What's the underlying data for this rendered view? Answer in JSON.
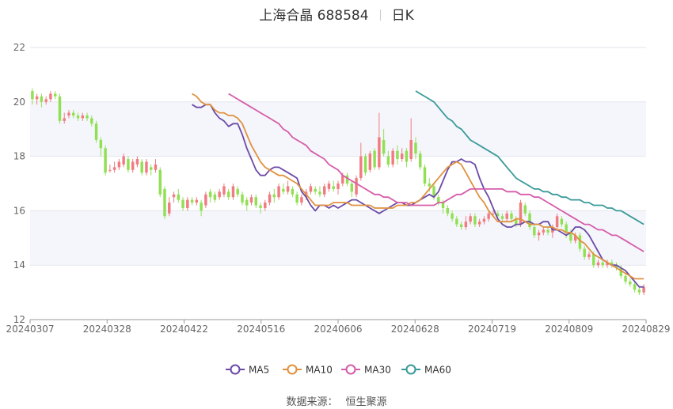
{
  "header": {
    "title": "上海合晶 688584",
    "period": "日K"
  },
  "source": {
    "label": "数据来源：",
    "value": "恒生聚源"
  },
  "colors": {
    "up": "#f07c82",
    "down": "#91e054",
    "MA5": "#6b4aa8",
    "MA10": "#e0913f",
    "MA30": "#d65ca8",
    "MA60": "#3a9a98",
    "band": "#f4f6fb",
    "grid": "#e3e6ec"
  },
  "chart_data": {
    "type": "candlestick",
    "title": "上海合晶 688584",
    "ylim": [
      12,
      22
    ],
    "yticks": [
      12,
      14,
      16,
      18,
      20,
      22
    ],
    "xticks": [
      "20240307",
      "20240328",
      "20240422",
      "20240516",
      "20240606",
      "20240628",
      "20240719",
      "20240809",
      "20240829"
    ],
    "grid": true,
    "legend_position": "bottom",
    "candles": [
      [
        20.4,
        20.1,
        20.5,
        19.9
      ],
      [
        20.1,
        20.2,
        20.3,
        19.9
      ],
      [
        20.2,
        20.0,
        20.3,
        19.8
      ],
      [
        20.0,
        20.1,
        20.2,
        19.9
      ],
      [
        20.1,
        20.3,
        20.4,
        20.0
      ],
      [
        20.3,
        20.2,
        20.4,
        20.1
      ],
      [
        20.2,
        19.3,
        20.3,
        19.2
      ],
      [
        19.3,
        19.4,
        19.6,
        19.2
      ],
      [
        19.5,
        19.6,
        19.7,
        19.4
      ],
      [
        19.6,
        19.5,
        19.7,
        19.4
      ],
      [
        19.5,
        19.4,
        19.6,
        19.3
      ],
      [
        19.4,
        19.5,
        19.6,
        19.3
      ],
      [
        19.5,
        19.4,
        19.6,
        19.3
      ],
      [
        19.4,
        19.2,
        19.5,
        19.1
      ],
      [
        19.2,
        18.6,
        19.3,
        18.5
      ],
      [
        18.6,
        18.3,
        18.7,
        18.0
      ],
      [
        18.3,
        17.4,
        18.4,
        17.3
      ],
      [
        17.5,
        17.5,
        17.7,
        17.4
      ],
      [
        17.5,
        17.6,
        17.8,
        17.4
      ],
      [
        17.6,
        17.8,
        17.9,
        17.5
      ],
      [
        17.7,
        18.0,
        18.1,
        17.6
      ],
      [
        17.9,
        17.5,
        18.0,
        17.4
      ],
      [
        17.5,
        17.8,
        17.9,
        17.4
      ],
      [
        17.7,
        17.9,
        18.0,
        17.6
      ],
      [
        17.8,
        17.4,
        17.9,
        17.3
      ],
      [
        17.4,
        17.8,
        17.9,
        17.3
      ],
      [
        17.6,
        17.5,
        17.7,
        17.3
      ],
      [
        17.5,
        17.7,
        17.9,
        17.4
      ],
      [
        17.5,
        16.6,
        17.6,
        16.5
      ],
      [
        16.8,
        15.8,
        16.9,
        15.7
      ],
      [
        15.9,
        16.3,
        16.5,
        15.8
      ],
      [
        16.5,
        16.6,
        16.7,
        16.3
      ],
      [
        16.6,
        16.4,
        16.8,
        16.3
      ],
      [
        16.4,
        16.1,
        16.5,
        16.0
      ],
      [
        16.1,
        16.4,
        16.5,
        16.0
      ],
      [
        16.4,
        16.3,
        16.5,
        16.2
      ],
      [
        16.3,
        16.4,
        16.5,
        16.2
      ],
      [
        16.3,
        16.0,
        16.4,
        15.8
      ],
      [
        16.2,
        16.6,
        16.7,
        16.1
      ],
      [
        16.7,
        16.5,
        16.8,
        16.3
      ],
      [
        16.6,
        16.4,
        16.7,
        16.3
      ],
      [
        16.5,
        16.7,
        16.8,
        16.4
      ],
      [
        16.6,
        16.9,
        17.0,
        16.5
      ],
      [
        16.7,
        16.5,
        16.8,
        16.4
      ],
      [
        16.5,
        16.9,
        17.0,
        16.4
      ],
      [
        16.8,
        16.6,
        16.9,
        16.5
      ],
      [
        16.6,
        16.3,
        16.7,
        16.2
      ],
      [
        16.4,
        16.2,
        16.5,
        16.0
      ],
      [
        16.3,
        16.5,
        16.6,
        16.2
      ],
      [
        16.5,
        16.2,
        16.6,
        16.1
      ],
      [
        16.2,
        16.1,
        16.3,
        15.9
      ],
      [
        16.1,
        16.3,
        16.4,
        16.0
      ],
      [
        16.3,
        16.6,
        16.7,
        16.2
      ],
      [
        16.6,
        16.5,
        16.8,
        16.3
      ],
      [
        16.5,
        16.9,
        17.0,
        16.4
      ],
      [
        16.8,
        16.7,
        17.0,
        16.6
      ],
      [
        16.7,
        16.9,
        17.1,
        16.6
      ],
      [
        16.8,
        16.6,
        16.9,
        16.5
      ],
      [
        16.6,
        16.3,
        16.7,
        16.2
      ],
      [
        16.3,
        16.5,
        16.6,
        16.2
      ],
      [
        16.5,
        16.7,
        16.8,
        16.4
      ],
      [
        16.7,
        16.9,
        17.0,
        16.6
      ],
      [
        16.8,
        16.7,
        16.9,
        16.6
      ],
      [
        16.7,
        16.6,
        16.9,
        16.5
      ],
      [
        16.6,
        16.9,
        17.0,
        16.5
      ],
      [
        16.8,
        17.0,
        17.1,
        16.7
      ],
      [
        16.9,
        16.8,
        17.1,
        16.7
      ],
      [
        16.8,
        17.0,
        17.1,
        16.6
      ],
      [
        17.0,
        17.3,
        17.4,
        16.9
      ],
      [
        17.3,
        17.0,
        17.4,
        16.9
      ],
      [
        17.0,
        16.7,
        17.1,
        16.5
      ],
      [
        16.6,
        17.2,
        17.3,
        16.5
      ],
      [
        17.2,
        18.0,
        18.5,
        17.1
      ],
      [
        18.0,
        17.4,
        18.1,
        17.3
      ],
      [
        17.5,
        18.1,
        18.2,
        17.4
      ],
      [
        18.2,
        17.6,
        18.3,
        17.5
      ],
      [
        17.6,
        18.7,
        19.6,
        17.5
      ],
      [
        18.6,
        18.1,
        19.0,
        18.0
      ],
      [
        18.0,
        17.7,
        18.2,
        17.6
      ],
      [
        17.7,
        18.2,
        18.3,
        17.6
      ],
      [
        18.2,
        17.9,
        18.4,
        17.7
      ],
      [
        17.9,
        18.1,
        18.3,
        17.8
      ],
      [
        18.2,
        17.8,
        18.3,
        17.6
      ],
      [
        17.9,
        18.6,
        19.4,
        17.8
      ],
      [
        18.5,
        18.1,
        18.7,
        17.9
      ],
      [
        18.1,
        17.6,
        18.2,
        17.5
      ],
      [
        17.6,
        17.0,
        17.7,
        16.9
      ],
      [
        17.0,
        16.9,
        17.2,
        16.7
      ],
      [
        16.9,
        16.5,
        17.0,
        16.4
      ],
      [
        16.5,
        16.3,
        16.6,
        16.2
      ],
      [
        16.3,
        16.1,
        16.4,
        15.9
      ],
      [
        16.1,
        15.9,
        16.2,
        15.8
      ],
      [
        15.9,
        15.7,
        16.0,
        15.6
      ],
      [
        15.7,
        15.5,
        15.8,
        15.4
      ],
      [
        15.5,
        15.4,
        15.6,
        15.3
      ],
      [
        15.4,
        15.6,
        15.8,
        15.3
      ],
      [
        15.6,
        15.8,
        15.9,
        15.5
      ],
      [
        15.8,
        15.5,
        15.9,
        15.4
      ],
      [
        15.5,
        15.6,
        15.7,
        15.4
      ],
      [
        15.6,
        15.7,
        15.8,
        15.5
      ],
      [
        15.7,
        15.9,
        16.0,
        15.6
      ],
      [
        15.9,
        15.9,
        16.0,
        15.8
      ],
      [
        15.9,
        15.8,
        16.0,
        15.7
      ],
      [
        15.8,
        15.7,
        15.9,
        15.6
      ],
      [
        15.7,
        15.9,
        16.0,
        15.6
      ],
      [
        15.9,
        15.7,
        16.0,
        15.6
      ],
      [
        15.7,
        15.5,
        15.8,
        15.4
      ],
      [
        15.5,
        16.3,
        16.4,
        15.4
      ],
      [
        16.2,
        15.9,
        16.3,
        15.8
      ],
      [
        15.9,
        15.4,
        16.0,
        15.3
      ],
      [
        15.4,
        15.1,
        15.5,
        15.0
      ],
      [
        15.1,
        15.2,
        15.3,
        14.9
      ],
      [
        15.2,
        15.3,
        15.4,
        15.1
      ],
      [
        15.3,
        15.2,
        15.4,
        15.1
      ],
      [
        15.2,
        15.4,
        15.5,
        15.0
      ],
      [
        15.4,
        15.8,
        15.9,
        15.3
      ],
      [
        15.7,
        15.5,
        15.8,
        15.4
      ],
      [
        15.5,
        15.2,
        15.6,
        15.0
      ],
      [
        15.2,
        14.9,
        15.3,
        14.8
      ],
      [
        14.9,
        15.1,
        15.2,
        14.8
      ],
      [
        15.1,
        14.6,
        15.2,
        14.5
      ],
      [
        14.6,
        14.3,
        14.7,
        14.2
      ],
      [
        14.3,
        14.4,
        14.5,
        14.2
      ],
      [
        14.4,
        14.0,
        14.5,
        13.9
      ],
      [
        14.0,
        14.1,
        14.2,
        13.9
      ],
      [
        14.1,
        14.0,
        14.2,
        13.9
      ],
      [
        14.0,
        14.1,
        14.2,
        13.9
      ],
      [
        14.1,
        14.0,
        14.2,
        13.9
      ],
      [
        14.0,
        13.9,
        14.1,
        13.8
      ],
      [
        13.9,
        13.6,
        14.0,
        13.5
      ],
      [
        13.6,
        13.4,
        13.7,
        13.3
      ],
      [
        13.4,
        13.3,
        13.5,
        13.2
      ],
      [
        13.3,
        13.1,
        13.4,
        13.0
      ],
      [
        13.1,
        13.0,
        13.2,
        12.9
      ],
      [
        13.0,
        13.2,
        13.3,
        12.9
      ]
    ],
    "series": [
      {
        "name": "MA5",
        "key": "ma5",
        "values": [
          19.9,
          19.8,
          19.8,
          19.9,
          19.9,
          19.6,
          19.4,
          19.3,
          19.1,
          19.2,
          19.2,
          18.8,
          18.3,
          17.9,
          17.5,
          17.3,
          17.3,
          17.5,
          17.6,
          17.6,
          17.5,
          17.4,
          17.3,
          17.2,
          16.7,
          16.5,
          16.2,
          16.0,
          16.2,
          16.2,
          16.1,
          16.2,
          16.1,
          16.2,
          16.3,
          16.4,
          16.4,
          16.3,
          16.2,
          16.1,
          16.0,
          15.9,
          16.0,
          16.1,
          16.2,
          16.3,
          16.3,
          16.2,
          16.2,
          16.3,
          16.4,
          16.5,
          16.6,
          16.5,
          16.7,
          17.1,
          17.5,
          17.8,
          17.8,
          17.9,
          17.8,
          17.8,
          17.7,
          17.2,
          16.8,
          16.5,
          16.1,
          15.7,
          15.5,
          15.4,
          15.4,
          15.5,
          15.5,
          15.6,
          15.6,
          15.5,
          15.5,
          15.6,
          15.6,
          15.3,
          15.3,
          15.2,
          15.1,
          15.2,
          15.4,
          15.4,
          15.3,
          15.1,
          14.8,
          14.5,
          14.2,
          14.1,
          14.0,
          14.0,
          13.9,
          13.8,
          13.6,
          13.4,
          13.2,
          13.2
        ]
      },
      {
        "name": "MA10",
        "key": "ma10",
        "values": [
          20.3,
          20.2,
          20.0,
          19.9,
          19.9,
          19.7,
          19.6,
          19.6,
          19.5,
          19.5,
          19.4,
          19.2,
          18.8,
          18.4,
          18.1,
          17.8,
          17.6,
          17.5,
          17.4,
          17.3,
          17.3,
          17.2,
          17.1,
          17.0,
          16.8,
          16.6,
          16.4,
          16.2,
          16.2,
          16.2,
          16.2,
          16.3,
          16.3,
          16.3,
          16.3,
          16.2,
          16.2,
          16.2,
          16.2,
          16.2,
          16.1,
          16.1,
          16.1,
          16.1,
          16.1,
          16.2,
          16.2,
          16.2,
          16.3,
          16.3,
          16.4,
          16.6,
          16.8,
          17.0,
          17.2,
          17.4,
          17.6,
          17.7,
          17.8,
          17.7,
          17.4,
          17.1,
          16.8,
          16.5,
          16.3,
          16.0,
          15.8,
          15.6,
          15.6,
          15.6,
          15.6,
          15.7,
          15.7,
          15.6,
          15.5,
          15.5,
          15.5,
          15.4,
          15.4,
          15.4,
          15.3,
          15.3,
          15.2,
          15.2,
          15.1,
          14.9,
          14.8,
          14.6,
          14.4,
          14.3,
          14.2,
          14.1,
          14.0,
          13.9,
          13.8,
          13.7,
          13.6,
          13.5,
          13.5,
          13.5
        ]
      },
      {
        "name": "MA30",
        "key": "ma30",
        "values": [
          20.3,
          20.2,
          20.1,
          20.0,
          19.9,
          19.8,
          19.7,
          19.6,
          19.5,
          19.4,
          19.3,
          19.2,
          19.0,
          18.9,
          18.7,
          18.6,
          18.5,
          18.4,
          18.2,
          18.1,
          18.0,
          17.9,
          17.7,
          17.6,
          17.5,
          17.3,
          17.2,
          17.1,
          17.0,
          16.9,
          16.8,
          16.7,
          16.6,
          16.6,
          16.5,
          16.5,
          16.4,
          16.3,
          16.3,
          16.3,
          16.2,
          16.2,
          16.2,
          16.2,
          16.2,
          16.2,
          16.3,
          16.3,
          16.4,
          16.5,
          16.6,
          16.6,
          16.7,
          16.8,
          16.8,
          16.8,
          16.8,
          16.8,
          16.8,
          16.8,
          16.8,
          16.7,
          16.7,
          16.7,
          16.6,
          16.6,
          16.6,
          16.5,
          16.5,
          16.4,
          16.3,
          16.2,
          16.1,
          16.0,
          15.9,
          15.8,
          15.7,
          15.6,
          15.5,
          15.5,
          15.4,
          15.3,
          15.3,
          15.2,
          15.1,
          15.1,
          15.0,
          14.9,
          14.8,
          14.7,
          14.6,
          14.5
        ]
      },
      {
        "name": "MA60",
        "key": "ma60",
        "values": [
          20.4,
          20.3,
          20.2,
          20.1,
          20.0,
          19.8,
          19.6,
          19.4,
          19.3,
          19.1,
          19.0,
          18.8,
          18.6,
          18.5,
          18.4,
          18.3,
          18.2,
          18.1,
          18.0,
          17.8,
          17.6,
          17.4,
          17.2,
          17.1,
          17.0,
          16.9,
          16.8,
          16.8,
          16.7,
          16.7,
          16.6,
          16.6,
          16.5,
          16.5,
          16.4,
          16.4,
          16.4,
          16.3,
          16.3,
          16.2,
          16.2,
          16.2,
          16.1,
          16.1,
          16.0,
          16.0,
          15.9,
          15.8,
          15.7,
          15.6,
          15.5
        ]
      }
    ]
  }
}
